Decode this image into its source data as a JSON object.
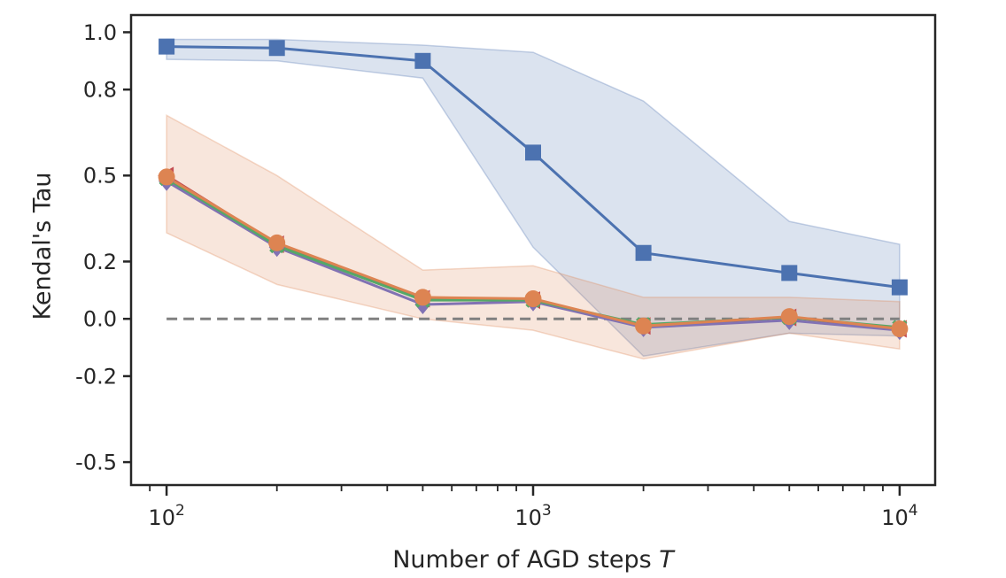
{
  "chart_data": {
    "type": "line",
    "title": "",
    "xlabel": "Number of AGD steps",
    "xlabel_var": "T",
    "ylabel": "Kendal's Tau",
    "xscale": "log",
    "xlim": [
      80,
      12500
    ],
    "ylim": [
      -0.58,
      1.06
    ],
    "y_ticks": [
      1.0,
      0.8,
      0.5,
      0.2,
      0.0,
      -0.2,
      -0.5
    ],
    "y_tick_labels": [
      "1.0",
      "0.8",
      "0.5",
      "0.2",
      "0.0",
      "-0.2",
      "-0.5"
    ],
    "x_ticks": [
      100,
      1000,
      10000
    ],
    "x_tick_labels": [
      {
        "base": "10",
        "exp": "2"
      },
      {
        "base": "10",
        "exp": "3"
      },
      {
        "base": "10",
        "exp": "4"
      }
    ],
    "x": [
      100,
      200,
      500,
      1000,
      2000,
      5000,
      10000
    ],
    "reference_line": {
      "y": 0.0,
      "color": "#808080",
      "style": "dashed"
    },
    "series": [
      {
        "name": "series-blue",
        "color": "#4C72B0",
        "marker": "square",
        "values": [
          0.95,
          0.945,
          0.9,
          0.58,
          0.23,
          0.16,
          0.11
        ],
        "band_lower": [
          0.905,
          0.9,
          0.84,
          0.25,
          -0.13,
          -0.05,
          -0.06
        ],
        "band_upper": [
          0.975,
          0.975,
          0.955,
          0.93,
          0.76,
          0.34,
          0.26
        ]
      },
      {
        "name": "series-red",
        "color": "#C44E52",
        "marker": "triangle-left",
        "values": [
          0.5,
          0.26,
          0.07,
          0.065,
          -0.025,
          0.005,
          -0.035
        ]
      },
      {
        "name": "series-purple",
        "color": "#8172B3",
        "marker": "diamond",
        "values": [
          0.48,
          0.25,
          0.05,
          0.06,
          -0.03,
          -0.005,
          -0.04
        ]
      },
      {
        "name": "series-green",
        "color": "#55A868",
        "marker": "x",
        "values": [
          0.49,
          0.255,
          0.065,
          0.065,
          -0.02,
          0.005,
          -0.03
        ]
      },
      {
        "name": "series-orange",
        "color": "#DD8452",
        "marker": "circle",
        "values": [
          0.495,
          0.265,
          0.075,
          0.07,
          -0.025,
          0.008,
          -0.035
        ],
        "band_lower": [
          0.3,
          0.12,
          0.0,
          -0.04,
          -0.14,
          -0.05,
          -0.105
        ],
        "band_upper": [
          0.71,
          0.5,
          0.17,
          0.185,
          0.075,
          0.075,
          0.06
        ]
      }
    ]
  }
}
